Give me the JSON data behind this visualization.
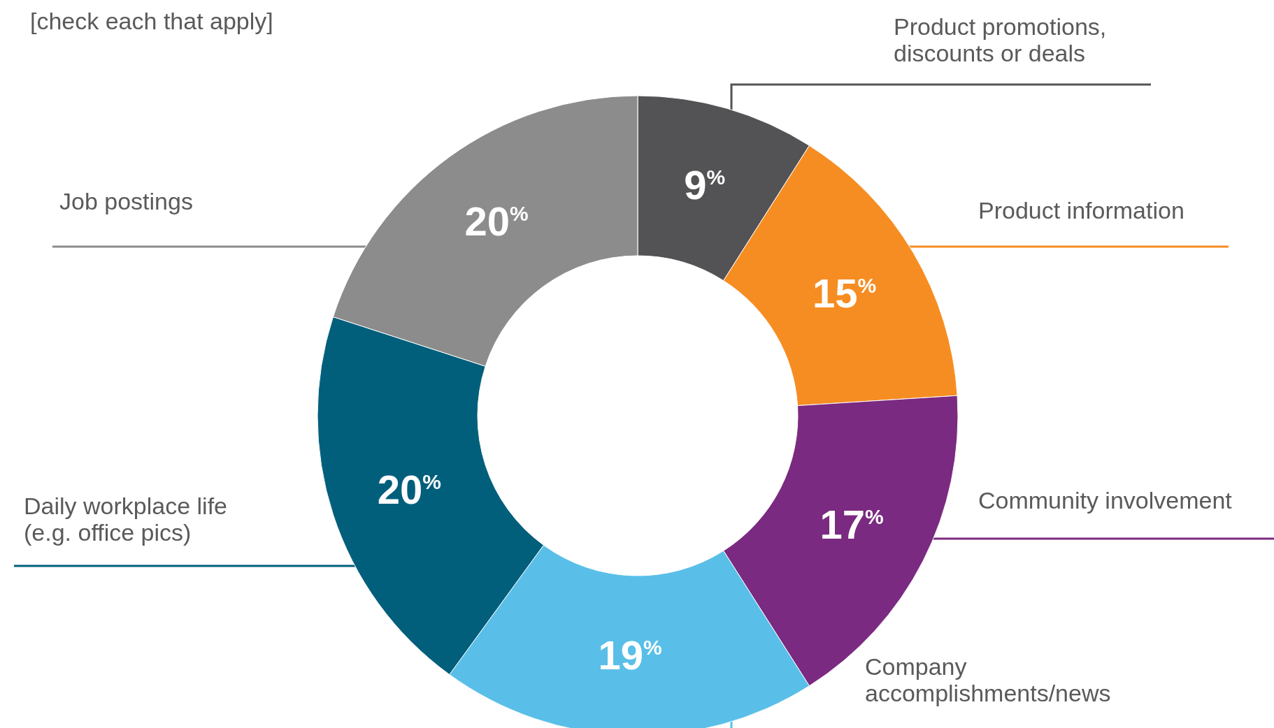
{
  "chart_data": {
    "type": "donut",
    "annotations": [
      "[check each that apply]"
    ],
    "categories": [
      "Product promotions, discounts or deals",
      "Product information",
      "Community involvement",
      "Company accomplishments/news",
      "Daily workplace life (e.g. office pics)",
      "Job postings"
    ],
    "values": [
      9,
      15,
      17,
      19,
      20,
      20
    ],
    "colors": [
      "#535355",
      "#f68d22",
      "#7a2a80",
      "#59bfe8",
      "#015f7c",
      "#8c8c8c"
    ],
    "value_labels": [
      "9$^{%}$",
      "15$^{%}$",
      "17$^{%}$",
      "19$^{%}$",
      "20$^{%}$",
      "20$^{%}$"
    ]
  }
}
